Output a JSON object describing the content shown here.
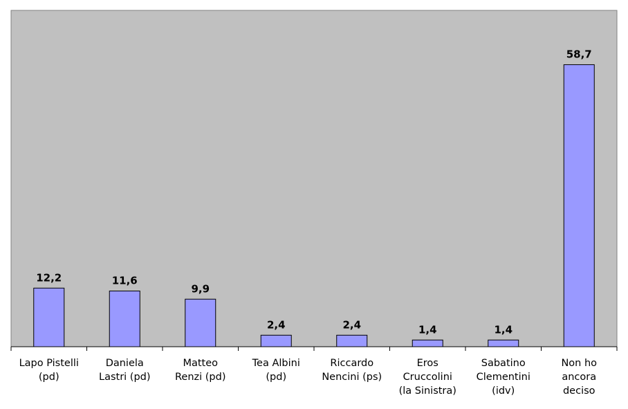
{
  "chart_data": {
    "type": "bar",
    "categories": [
      "Lapo Pistelli\n(pd)",
      "Daniela\nLastri (pd)",
      "Matteo\nRenzi (pd)",
      "Tea Albini\n(pd)",
      "Riccardo\nNencini (ps)",
      "Eros\nCruccolini\n(la Sinistra)",
      "Sabatino\nClementini\n(idv)",
      "Non ho\nancora\ndeciso"
    ],
    "values": [
      12.2,
      11.6,
      9.9,
      2.4,
      2.4,
      1.4,
      1.4,
      58.7
    ],
    "value_labels": [
      "12,2",
      "11,6",
      "9,9",
      "2,4",
      "2,4",
      "1,4",
      "1,4",
      "58,7"
    ],
    "color": "#9999ff",
    "ylim": [
      0,
      70
    ],
    "grid": false
  }
}
